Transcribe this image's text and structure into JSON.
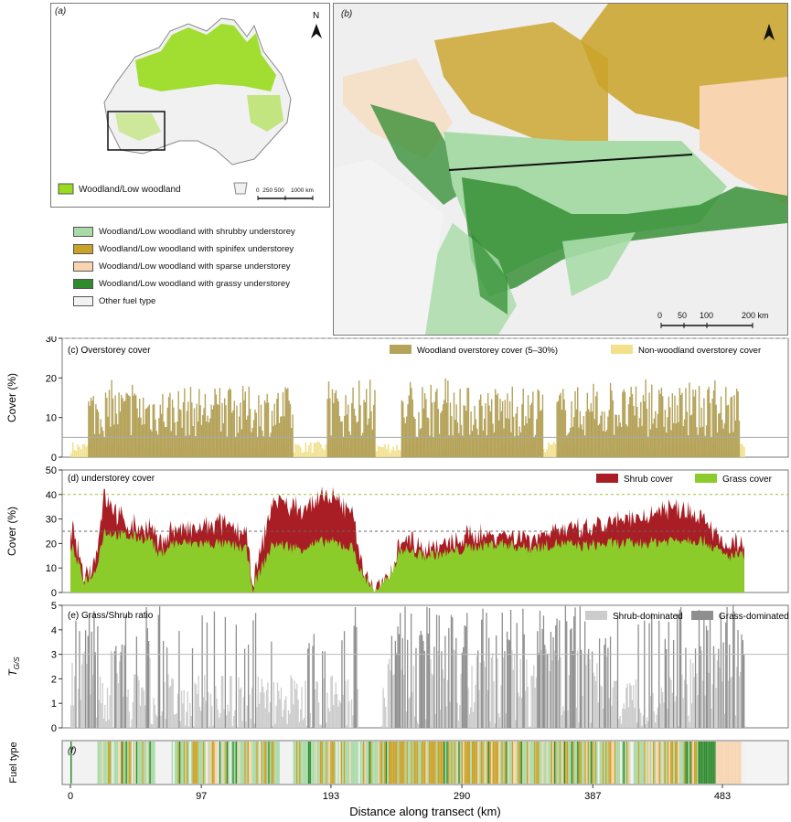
{
  "map_a": {
    "label": "(a)",
    "north": "N",
    "legend": "Woodland/Low woodland",
    "scale": "0  250 500    1000 km",
    "colors": {
      "woodland": "#9adb1e",
      "land": "#f3f3f3"
    }
  },
  "map_b": {
    "label": "(b)",
    "scale_ticks": [
      "0",
      "50",
      "100",
      "200 km"
    ]
  },
  "fuel_legend": {
    "items": [
      {
        "label": "Woodland/Low woodland with shrubby understorey",
        "color": "#a8dba8"
      },
      {
        "label": "Woodland/Low woodland with spinifex understorey",
        "color": "#c9a227"
      },
      {
        "label": "Woodland/Low woodland with sparse understorey",
        "color": "#f8d5b0"
      },
      {
        "label": "Woodland/Low woodland with grassy understorey",
        "color": "#2e8b2e"
      },
      {
        "label": "Other fuel type",
        "color": "#f2f2f2"
      }
    ]
  },
  "x_axis": {
    "label": "Distance along transect (km)",
    "ticks": [
      "0",
      "97",
      "193",
      "290",
      "387",
      "483"
    ]
  },
  "chart_data": [
    {
      "type": "bar",
      "panel": "(c) Overstorey cover",
      "ylabel": "Cover (%)",
      "ylim": [
        0,
        30
      ],
      "yticks": [
        "0",
        "10",
        "20",
        "30"
      ],
      "reference_lines": [
        5,
        30
      ],
      "series": [
        {
          "name": "Woodland overstorey cover (5–30%)",
          "color": "#b5a35a",
          "segments_km": [
            [
              13,
              165
            ],
            [
              190,
              226
            ],
            [
              245,
              350
            ],
            [
              360,
              495
            ]
          ],
          "typical_range": [
            5,
            18
          ],
          "peak": 20
        },
        {
          "name": "Non-woodland overstorey cover",
          "color": "#f2e08a",
          "typical_range": [
            0,
            5
          ]
        }
      ]
    },
    {
      "type": "area",
      "panel": "(d) understorey cover",
      "ylabel": "Cover (%)",
      "ylim": [
        0,
        50
      ],
      "yticks": [
        "0",
        "10",
        "20",
        "30",
        "40",
        "50"
      ],
      "reference_lines": [
        25,
        40
      ],
      "x": [
        0,
        10,
        18,
        25,
        40,
        60,
        65,
        75,
        90,
        110,
        130,
        135,
        150,
        170,
        190,
        210,
        215,
        223,
        226,
        235,
        245,
        260,
        280,
        300,
        320,
        340,
        360,
        380,
        400,
        420,
        440,
        455,
        470,
        480,
        485,
        500
      ],
      "series": [
        {
          "name": "Grass cover",
          "color": "#8ccc2a",
          "values": [
            20,
            5,
            8,
            25,
            23,
            22,
            15,
            20,
            20,
            20,
            18,
            2,
            20,
            18,
            21,
            18,
            8,
            3,
            0,
            5,
            18,
            15,
            16,
            19,
            20,
            18,
            20,
            19,
            20,
            20,
            21,
            22,
            21,
            17,
            15,
            15
          ]
        },
        {
          "name": "Shrub cover",
          "color": "#a81e24",
          "values": [
            8,
            2,
            5,
            15,
            5,
            4,
            4,
            6,
            5,
            8,
            7,
            0,
            18,
            16,
            18,
            15,
            3,
            0,
            0,
            0,
            5,
            4,
            3,
            5,
            4,
            4,
            6,
            6,
            8,
            10,
            14,
            12,
            10,
            5,
            4,
            5
          ]
        }
      ]
    },
    {
      "type": "bar",
      "panel": "(e) Grass/Shrub ratio",
      "ylabel": "T G/S",
      "ylim": [
        0,
        5
      ],
      "yticks": [
        "0",
        "1",
        "2",
        "3",
        "4",
        "5"
      ],
      "reference_lines": [
        3
      ],
      "series": [
        {
          "name": "Shrub-dominated",
          "color": "#cccccc"
        },
        {
          "name": "Grass-dominated",
          "color": "#8f8f8f"
        }
      ]
    },
    {
      "type": "heatmap",
      "panel": "(f)",
      "ylabel": "Fuel type",
      "categories": [
        "shrubby",
        "spinifex",
        "sparse",
        "grassy",
        "other"
      ]
    }
  ]
}
